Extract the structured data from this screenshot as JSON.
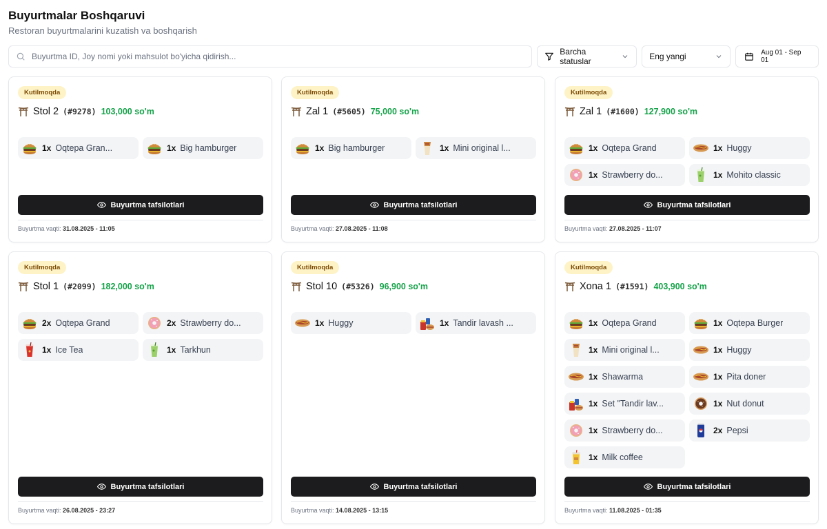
{
  "header": {
    "title": "Buyurtmalar Boshqaruvi",
    "subtitle": "Restoran buyurtmalarini kuzatish va boshqarish"
  },
  "toolbar": {
    "search_placeholder": "Buyurtma ID, Joy nomi yoki mahsulot bo'yicha qidirish...",
    "status_filter": "Barcha statuslar",
    "sort": "Eng yangi",
    "date_range": "Aug 01 - Sep 01"
  },
  "labels": {
    "details_button": "Buyurtma tafsilotlari",
    "time_prefix": "Buyurtma vaqti:"
  },
  "orders": [
    {
      "status": "Kutilmoqda",
      "table": "Stol 2",
      "id": "(#9278)",
      "total": "103,000 so'm",
      "time": "31.08.2025 - 11:05",
      "items": [
        {
          "qty": "1x",
          "name": "Oqtepa Gran...",
          "icon": "burger"
        },
        {
          "qty": "1x",
          "name": "Big hamburger",
          "icon": "burger"
        }
      ]
    },
    {
      "status": "Kutilmoqda",
      "table": "Zal 1",
      "id": "(#5605)",
      "total": "75,000 so'm",
      "time": "27.08.2025 - 11:08",
      "items": [
        {
          "qty": "1x",
          "name": "Big hamburger",
          "icon": "burger"
        },
        {
          "qty": "1x",
          "name": "Mini original l...",
          "icon": "wrap"
        }
      ]
    },
    {
      "status": "Kutilmoqda",
      "table": "Zal 1",
      "id": "(#1600)",
      "total": "127,900 so'm",
      "time": "27.08.2025 - 11:07",
      "items": [
        {
          "qty": "1x",
          "name": "Oqtepa Grand",
          "icon": "burger"
        },
        {
          "qty": "1x",
          "name": "Huggy",
          "icon": "hotdog"
        },
        {
          "qty": "1x",
          "name": "Strawberry do...",
          "icon": "donut-pink"
        },
        {
          "qty": "1x",
          "name": "Mohito classic",
          "icon": "drink-green"
        }
      ]
    },
    {
      "status": "Kutilmoqda",
      "table": "Stol 1",
      "id": "(#2099)",
      "total": "182,000 so'm",
      "time": "26.08.2025 - 23:27",
      "items": [
        {
          "qty": "2x",
          "name": "Oqtepa Grand",
          "icon": "burger"
        },
        {
          "qty": "2x",
          "name": "Strawberry do...",
          "icon": "donut-pink"
        },
        {
          "qty": "1x",
          "name": "Ice Tea",
          "icon": "drink-red"
        },
        {
          "qty": "1x",
          "name": "Tarkhun",
          "icon": "drink-green"
        }
      ]
    },
    {
      "status": "Kutilmoqda",
      "table": "Stol 10",
      "id": "(#5326)",
      "total": "96,900 so'm",
      "time": "14.08.2025 - 13:15",
      "items": [
        {
          "qty": "1x",
          "name": "Huggy",
          "icon": "hotdog"
        },
        {
          "qty": "1x",
          "name": "Tandir lavash ...",
          "icon": "set"
        }
      ]
    },
    {
      "status": "Kutilmoqda",
      "table": "Xona 1",
      "id": "(#1591)",
      "total": "403,900 so'm",
      "time": "11.08.2025 - 01:35",
      "items": [
        {
          "qty": "1x",
          "name": "Oqtepa Grand",
          "icon": "burger"
        },
        {
          "qty": "1x",
          "name": "Oqtepa Burger",
          "icon": "burger"
        },
        {
          "qty": "1x",
          "name": "Mini original l...",
          "icon": "wrap"
        },
        {
          "qty": "1x",
          "name": "Huggy",
          "icon": "hotdog"
        },
        {
          "qty": "1x",
          "name": "Shawarma",
          "icon": "hotdog"
        },
        {
          "qty": "1x",
          "name": "Pita doner",
          "icon": "hotdog"
        },
        {
          "qty": "1x",
          "name": "Set \"Tandir lav...",
          "icon": "set"
        },
        {
          "qty": "1x",
          "name": "Nut donut",
          "icon": "donut-brown"
        },
        {
          "qty": "1x",
          "name": "Strawberry do...",
          "icon": "donut-pink"
        },
        {
          "qty": "2x",
          "name": "Pepsi",
          "icon": "can-blue"
        },
        {
          "qty": "1x",
          "name": "Milk coffee",
          "icon": "cup-yellow"
        }
      ]
    }
  ]
}
